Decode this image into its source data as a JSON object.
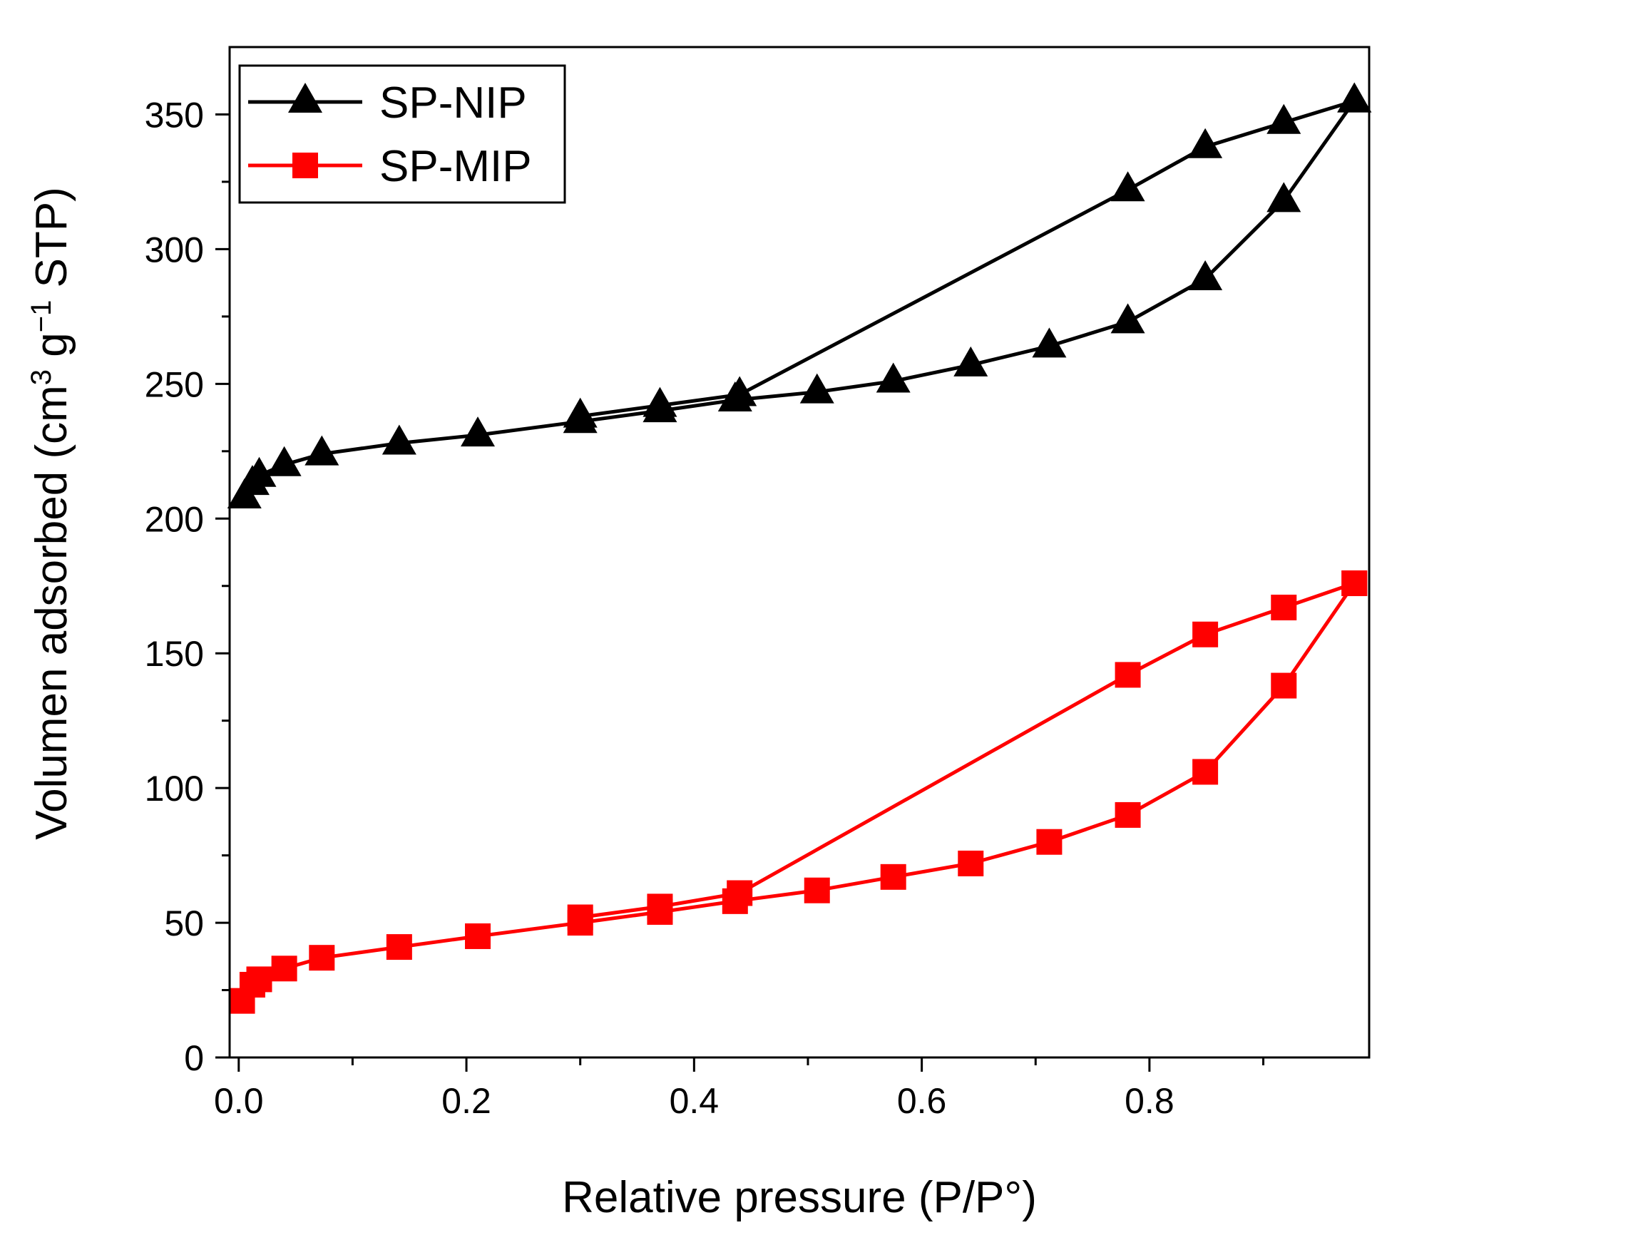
{
  "chart_data": {
    "type": "line",
    "xlabel": "Relative pressure (P/P°)",
    "ylabel": {
      "pre": "Volumen adsorbed (cm",
      "sup1": "3",
      "mid": " g",
      "sup2": "−1",
      "post": " STP)"
    },
    "xlim": [
      -0.008,
      0.993
    ],
    "ylim": [
      0,
      375
    ],
    "x_ticks": [
      0.0,
      0.2,
      0.4,
      0.6,
      0.8
    ],
    "x_tick_labels": [
      "0.0",
      "0.2",
      "0.4",
      "0.6",
      "0.8"
    ],
    "x_minor_ticks": [
      0.1,
      0.3,
      0.5,
      0.7,
      0.9
    ],
    "y_ticks": [
      0,
      50,
      100,
      150,
      200,
      250,
      300,
      350
    ],
    "y_tick_labels": [
      "0",
      "50",
      "100",
      "150",
      "200",
      "250",
      "300",
      "350"
    ],
    "y_minor_ticks": [
      25,
      75,
      125,
      175,
      225,
      275,
      325
    ],
    "legend_position": "top-left",
    "series": [
      {
        "name": "SP-NIP",
        "color": "#000000",
        "marker": "triangle",
        "adsorption": {
          "x": [
            0.005,
            0.012,
            0.018,
            0.04,
            0.073,
            0.141,
            0.21,
            0.3,
            0.37,
            0.436,
            0.508,
            0.575,
            0.643,
            0.712,
            0.781,
            0.849,
            0.918,
            0.98
          ],
          "y": [
            208,
            213,
            216,
            220,
            224,
            228,
            231,
            236,
            240,
            244,
            247,
            251,
            257,
            264,
            273,
            289,
            318,
            355
          ]
        },
        "desorption": {
          "x": [
            0.98,
            0.918,
            0.849,
            0.781,
            0.44,
            0.37,
            0.3
          ],
          "y": [
            355,
            347,
            338,
            322,
            246,
            242,
            238
          ]
        }
      },
      {
        "name": "SP-MIP",
        "color": "#ff0000",
        "marker": "square",
        "adsorption": {
          "x": [
            0.003,
            0.012,
            0.018,
            0.04,
            0.073,
            0.141,
            0.21,
            0.3,
            0.37,
            0.436,
            0.508,
            0.575,
            0.643,
            0.712,
            0.781,
            0.849,
            0.918,
            0.98
          ],
          "y": [
            21,
            27,
            29,
            33,
            37,
            41,
            45,
            50,
            54,
            58,
            62,
            67,
            72,
            80,
            90,
            106,
            138,
            176
          ]
        },
        "desorption": {
          "x": [
            0.98,
            0.918,
            0.849,
            0.781,
            0.44,
            0.37,
            0.3
          ],
          "y": [
            176,
            167,
            157,
            142,
            61,
            56,
            52
          ]
        }
      }
    ]
  }
}
